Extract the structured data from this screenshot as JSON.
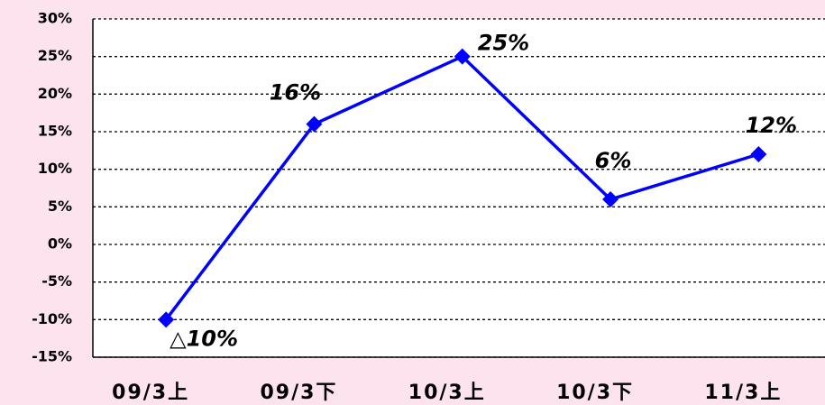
{
  "chart_data": {
    "type": "line",
    "categories": [
      "09/3上",
      "09/3下",
      "10/3上",
      "10/3下",
      "11/3上"
    ],
    "series": [
      {
        "name": null,
        "color": "#0000ff",
        "values": [
          -10,
          16,
          25,
          6,
          12
        ],
        "value_labels": [
          "△10%",
          "16%",
          "25%",
          "6%",
          "12%"
        ]
      }
    ],
    "ylim": [
      -15,
      30
    ],
    "yticks": [
      {
        "value": -15,
        "label": "-15%"
      },
      {
        "value": -10,
        "label": "-10%"
      },
      {
        "value": -5,
        "label": "-5%"
      },
      {
        "value": 0,
        "label": "0%"
      },
      {
        "value": 5,
        "label": "5%"
      },
      {
        "value": 10,
        "label": "10%"
      },
      {
        "value": 15,
        "label": "15%"
      },
      {
        "value": 20,
        "label": "20%"
      },
      {
        "value": 25,
        "label": "25%"
      },
      {
        "value": 30,
        "label": "30%"
      }
    ],
    "grid": true
  }
}
